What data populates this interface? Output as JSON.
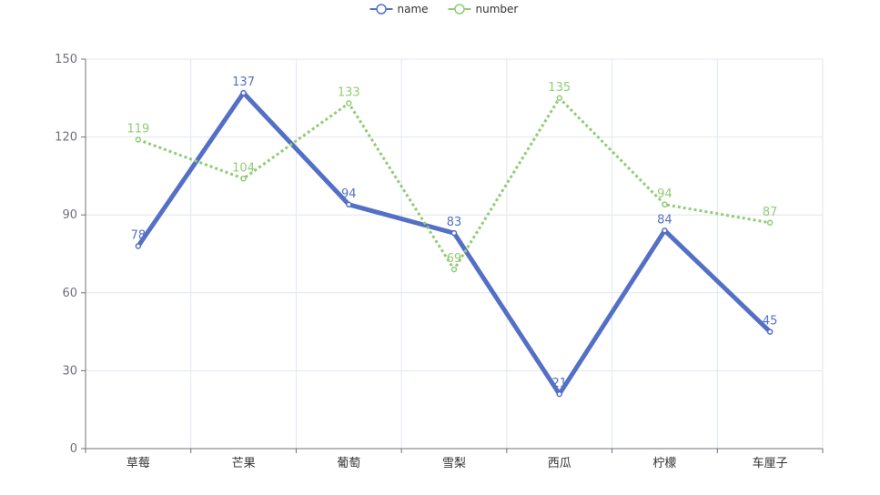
{
  "chart_data": {
    "type": "line",
    "categories": [
      "草莓",
      "芒果",
      "葡萄",
      "雪梨",
      "西瓜",
      "柠檬",
      "车厘子"
    ],
    "series": [
      {
        "name": "name",
        "values": [
          78,
          137,
          94,
          83,
          21,
          84,
          45
        ],
        "color": "#5470c6",
        "line_style": "solid"
      },
      {
        "name": "number",
        "values": [
          119,
          104,
          133,
          69,
          135,
          94,
          87
        ],
        "color": "#91cc75",
        "line_style": "dotted"
      }
    ],
    "ylim": [
      0,
      150
    ],
    "yticks": [
      0,
      30,
      60,
      90,
      120,
      150
    ],
    "grid": true,
    "legend_position": "top-center",
    "data_labels": true
  }
}
